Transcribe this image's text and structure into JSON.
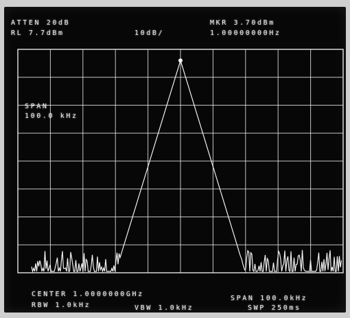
{
  "header": {
    "atten": "ATTEN 20dB",
    "ref_level": "RL 7.7dBm",
    "scale": "10dB/",
    "marker_level": "MKR 3.70dBm",
    "marker_freq": "1.00000000Hz"
  },
  "span_annotation": {
    "label": "SPAN",
    "value": "100.0 kHz"
  },
  "footer": {
    "center": "CENTER 1.0000000GHz",
    "span": "SPAN 100.0kHz",
    "rbw": "RBW 1.0kHz",
    "vbw": "VBW 1.0kHz",
    "sweep": "SWP 250ms"
  },
  "display": {
    "trace_color": "#f2f2f2",
    "grid_color": "#e6e6e6",
    "background": "#070707",
    "grid_divisions_x": 10,
    "grid_divisions_y": 8,
    "noise_floor_db": -70,
    "peak_db": 3.7,
    "ref_db": 7.7,
    "scale_db_per_div": 10
  }
}
